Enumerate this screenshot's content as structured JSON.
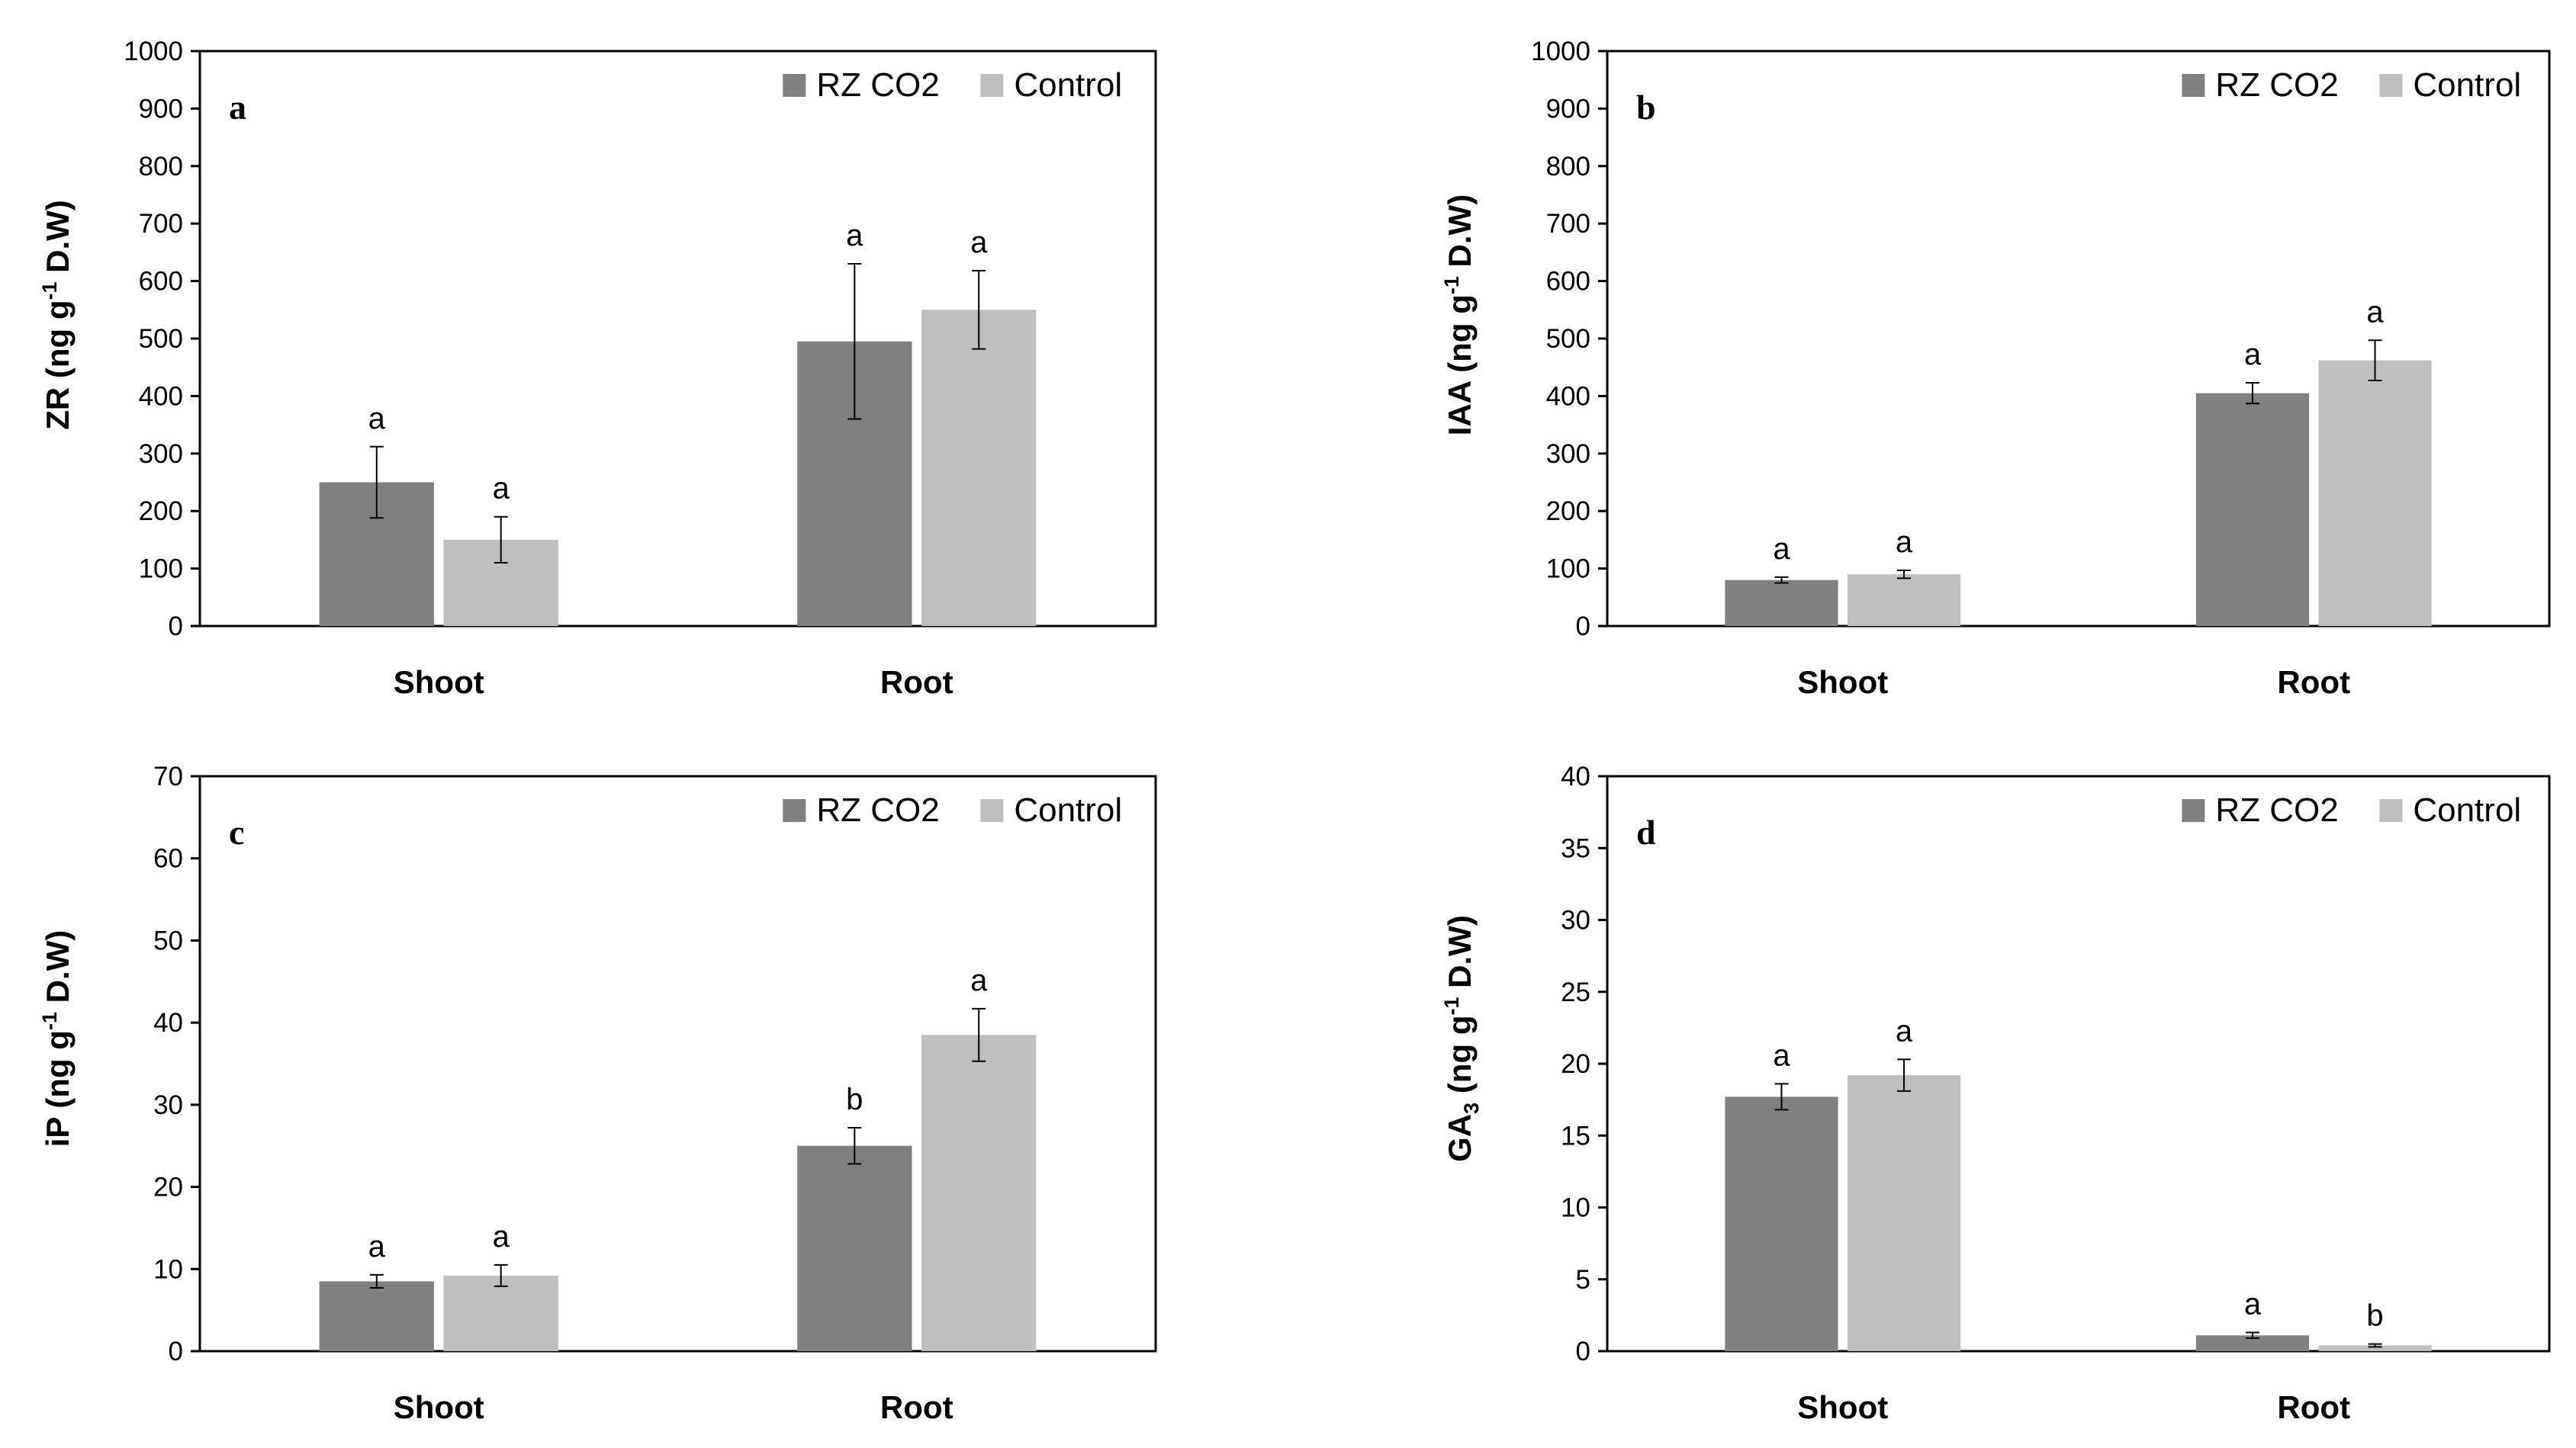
{
  "legend": [
    "RZ CO2",
    "Control"
  ],
  "colors": {
    "rz_co2": "#808080",
    "control": "#bfbfbf"
  },
  "chart_data": [
    {
      "type": "bar",
      "panel": "a",
      "ylabel": {
        "main": "ZR  (ng g",
        "sup": "-1",
        "tail": " D.W)"
      },
      "categories": [
        "Shoot",
        "Root"
      ],
      "ylim": [
        0,
        1000
      ],
      "yticks": [
        0,
        100,
        200,
        300,
        400,
        500,
        600,
        700,
        800,
        900,
        1000
      ],
      "series": [
        {
          "name": "RZ CO2",
          "values": [
            250,
            495
          ],
          "errors": [
            62,
            135
          ],
          "letters": [
            "a",
            "a"
          ]
        },
        {
          "name": "Control",
          "values": [
            150,
            550
          ],
          "errors": [
            40,
            68
          ],
          "letters": [
            "a",
            "a"
          ]
        }
      ],
      "legend_position": "top-right"
    },
    {
      "type": "bar",
      "panel": "b",
      "ylabel": {
        "main": "IAA  (ng g",
        "sup": "-1",
        "tail": " D.W)"
      },
      "categories": [
        "Shoot",
        "Root"
      ],
      "ylim": [
        0,
        1000
      ],
      "yticks": [
        0,
        100,
        200,
        300,
        400,
        500,
        600,
        700,
        800,
        900,
        1000
      ],
      "series": [
        {
          "name": "RZ CO2",
          "values": [
            80,
            405
          ],
          "errors": [
            5,
            18
          ],
          "letters": [
            "a",
            "a"
          ]
        },
        {
          "name": "Control",
          "values": [
            90,
            462
          ],
          "errors": [
            7,
            35
          ],
          "letters": [
            "a",
            "a"
          ]
        }
      ],
      "legend_position": "top-right"
    },
    {
      "type": "bar",
      "panel": "c",
      "ylabel": {
        "main": "iP  (ng g",
        "sup": "-1",
        "tail": " D.W)"
      },
      "categories": [
        "Shoot",
        "Root"
      ],
      "ylim": [
        0,
        70
      ],
      "yticks": [
        0,
        10,
        20,
        30,
        40,
        50,
        60,
        70
      ],
      "series": [
        {
          "name": "RZ CO2",
          "values": [
            8.5,
            25
          ],
          "errors": [
            0.8,
            2.2
          ],
          "letters": [
            "a",
            "b"
          ]
        },
        {
          "name": "Control",
          "values": [
            9.2,
            38.5
          ],
          "errors": [
            1.3,
            3.2
          ],
          "letters": [
            "a",
            "a"
          ]
        }
      ],
      "legend_position": "top-right"
    },
    {
      "type": "bar",
      "panel": "d",
      "ylabel": {
        "main": "GA",
        "sub": "3",
        "main2": "  (ng g",
        "sup": "-1",
        "tail": " D.W)"
      },
      "categories": [
        "Shoot",
        "Root"
      ],
      "ylim": [
        0,
        40
      ],
      "yticks": [
        0,
        5,
        10,
        15,
        20,
        25,
        30,
        35,
        40
      ],
      "series": [
        {
          "name": "RZ CO2",
          "values": [
            17.7,
            1.1
          ],
          "errors": [
            0.9,
            0.2
          ],
          "letters": [
            "a",
            "a"
          ]
        },
        {
          "name": "Control",
          "values": [
            19.2,
            0.4
          ],
          "errors": [
            1.1,
            0.1
          ],
          "letters": [
            "a",
            "b"
          ]
        }
      ],
      "legend_position": "top-right"
    }
  ]
}
